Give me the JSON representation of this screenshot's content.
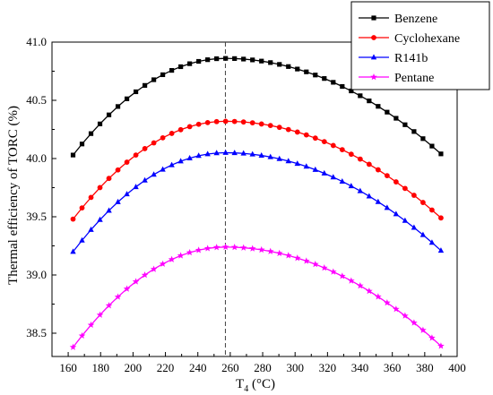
{
  "chart_data": {
    "type": "line",
    "xlabel_main": "T",
    "xlabel_sub": "4",
    "xlabel_unit": " (°C)",
    "ylabel": "Thermal efficiency of TORC (%)",
    "xlim": [
      150,
      400
    ],
    "ylim": [
      38.3,
      41.0
    ],
    "x_ticks": [
      160,
      180,
      200,
      220,
      240,
      260,
      280,
      300,
      320,
      340,
      360,
      380,
      400
    ],
    "y_ticks": [
      38.5,
      39.0,
      39.5,
      40.0,
      40.5,
      41.0
    ],
    "x_tick_labels": [
      "160",
      "180",
      "200",
      "220",
      "240",
      "260",
      "280",
      "300",
      "320",
      "340",
      "360",
      "380",
      "400"
    ],
    "y_tick_labels": [
      "38.5",
      "39.0",
      "39.5",
      "40.0",
      "40.5",
      "41.0"
    ],
    "reference_line_x": 257,
    "legend_position": "top-right",
    "series": [
      {
        "name": "Benzene",
        "color": "#000000",
        "marker": "square",
        "x_start": 163,
        "x_end": 390,
        "x_peak": 257,
        "y_start": 40.03,
        "y_peak": 40.86,
        "y_end": 40.04,
        "n_points": 42
      },
      {
        "name": "Cyclohexane",
        "color": "#ff0000",
        "marker": "circle",
        "x_start": 163,
        "x_end": 390,
        "x_peak": 257,
        "y_start": 39.48,
        "y_peak": 40.32,
        "y_end": 39.49,
        "n_points": 42
      },
      {
        "name": "R141b",
        "color": "#0000ff",
        "marker": "triangle",
        "x_start": 163,
        "x_end": 390,
        "x_peak": 257,
        "y_start": 39.2,
        "y_peak": 40.05,
        "y_end": 39.21,
        "n_points": 42
      },
      {
        "name": "Pentane",
        "color": "#ff00ff",
        "marker": "star",
        "x_start": 163,
        "x_end": 390,
        "x_peak": 257,
        "y_start": 38.38,
        "y_peak": 39.24,
        "y_end": 38.39,
        "n_points": 42
      }
    ]
  }
}
